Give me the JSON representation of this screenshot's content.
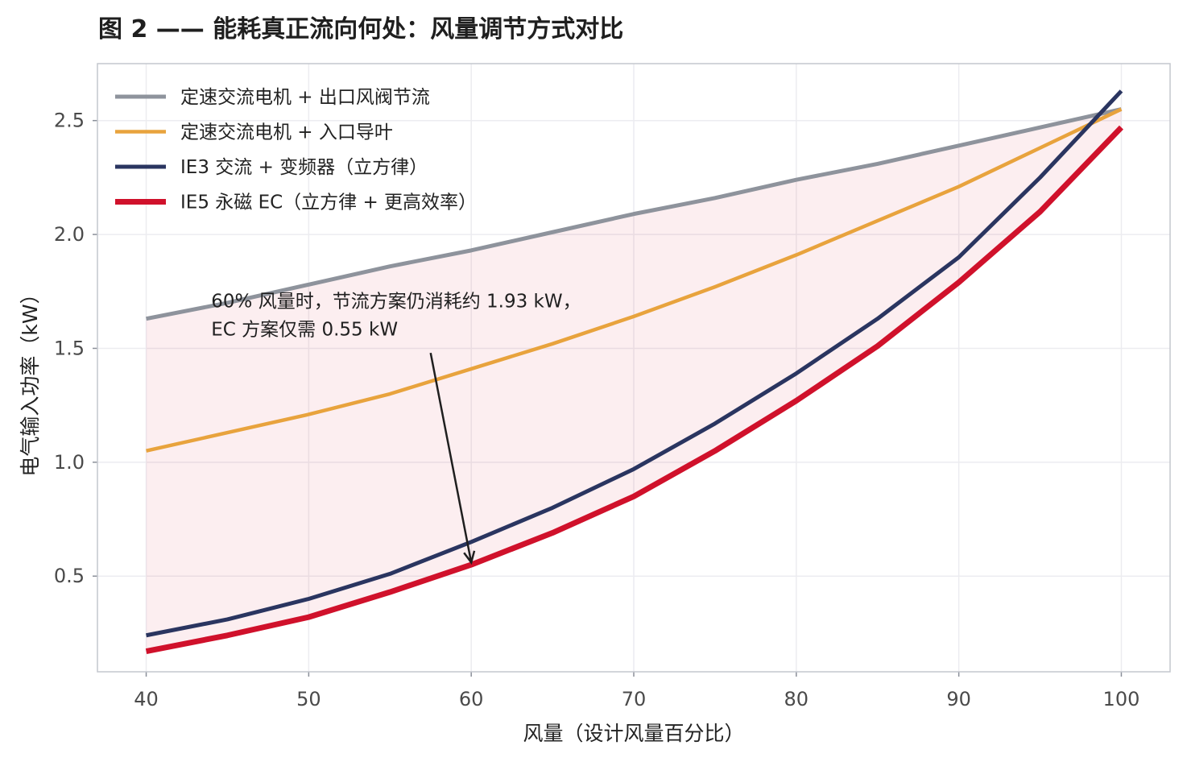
{
  "chart_data": {
    "type": "line",
    "title": "图 2 —— 能耗真正流向何处：风量调节方式对比",
    "xlabel": "风量（设计风量百分比）",
    "ylabel": "电气输入功率（kW）",
    "xlim": [
      37,
      103
    ],
    "ylim": [
      0.08,
      2.75
    ],
    "xticks": [
      40,
      50,
      60,
      70,
      80,
      90,
      100
    ],
    "yticks": [
      0.5,
      1.0,
      1.5,
      2.0,
      2.5
    ],
    "ytick_labels": [
      "0.5",
      "1.0",
      "1.5",
      "2.0",
      "2.5"
    ],
    "grid": true,
    "legend_position": "top-left",
    "x": [
      40,
      45,
      50,
      55,
      60,
      65,
      70,
      75,
      80,
      85,
      90,
      95,
      100
    ],
    "series": [
      {
        "name": "定速交流电机 + 出口风阀节流",
        "color": "#8e939c",
        "width": 5,
        "values": [
          1.63,
          1.7,
          1.78,
          1.86,
          1.93,
          2.01,
          2.09,
          2.16,
          2.24,
          2.31,
          2.39,
          2.47,
          2.55
        ]
      },
      {
        "name": "定速交流电机 + 入口导叶",
        "color": "#e8a33d",
        "width": 4.5,
        "values": [
          1.05,
          1.13,
          1.21,
          1.3,
          1.41,
          1.52,
          1.64,
          1.77,
          1.91,
          2.06,
          2.21,
          2.38,
          2.55
        ]
      },
      {
        "name": "IE3 交流 + 变频器（立方律）",
        "color": "#2a3560",
        "width": 5,
        "values": [
          0.24,
          0.31,
          0.4,
          0.51,
          0.65,
          0.8,
          0.97,
          1.17,
          1.39,
          1.63,
          1.9,
          2.25,
          2.63
        ]
      },
      {
        "name": "IE5 永磁 EC（立方律 + 更高效率）",
        "color": "#d0112b",
        "width": 7,
        "values": [
          0.17,
          0.24,
          0.32,
          0.43,
          0.55,
          0.69,
          0.85,
          1.05,
          1.27,
          1.51,
          1.79,
          2.1,
          2.47
        ]
      }
    ],
    "fill_between": {
      "upper_series": 0,
      "lower_series": 3,
      "color": "#d0112b",
      "opacity": 0.07
    },
    "annotation": {
      "lines": [
        "60% 风量时，节流方案仍消耗约 1.93 kW，",
        "EC 方案仅需 0.55 kW"
      ],
      "text_at": [
        44,
        1.68
      ],
      "arrow_from": [
        57.5,
        1.48
      ],
      "arrow_to": [
        60,
        0.56
      ]
    }
  }
}
